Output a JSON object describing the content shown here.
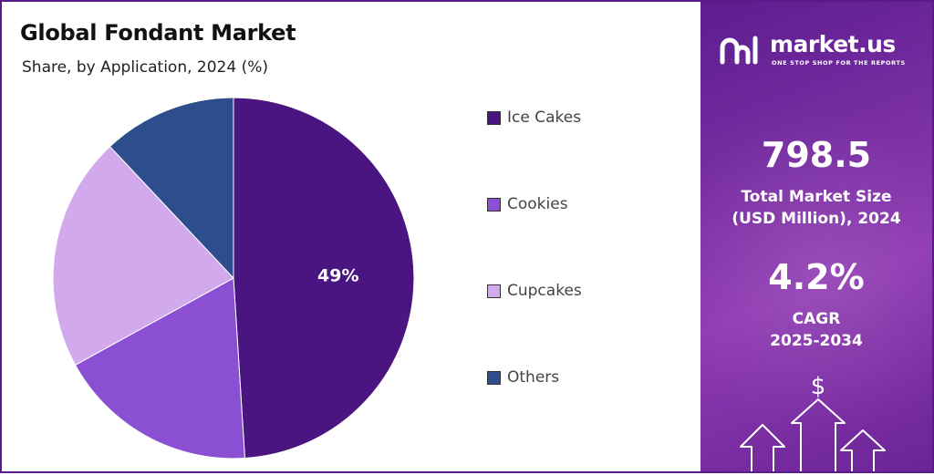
{
  "chart_data": {
    "type": "pie",
    "title": "Global Fondant Market",
    "subtitle": "Share, by Application, 2024 (%)",
    "categories": [
      "Ice Cakes",
      "Cookies",
      "Cupcakes",
      "Others"
    ],
    "values": [
      49,
      18,
      21,
      12
    ],
    "colors": [
      "#4a1580",
      "#8b4fd3",
      "#d2a9ec",
      "#2e4d8c"
    ],
    "slice_labels": [
      "49%",
      "",
      "",
      ""
    ],
    "legend_position": "right"
  },
  "brand": {
    "name": "market.us",
    "tagline": "ONE STOP SHOP FOR THE REPORTS",
    "icon": "market-us-logo-icon"
  },
  "stats": {
    "market_size_value": "798.5",
    "market_size_label_line1": "Total Market Size",
    "market_size_label_line2": "(USD Million), 2024",
    "cagr_value": "4.2%",
    "cagr_label_line1": "CAGR",
    "cagr_label_line2": "2025-2034"
  },
  "decor": {
    "dollar_symbol": "$",
    "icon": "growth-arrows-icon"
  },
  "colors": {
    "panel_dark": "#5c1d8f",
    "panel_light": "#8f3ab2",
    "border": "#5a1a8a"
  }
}
